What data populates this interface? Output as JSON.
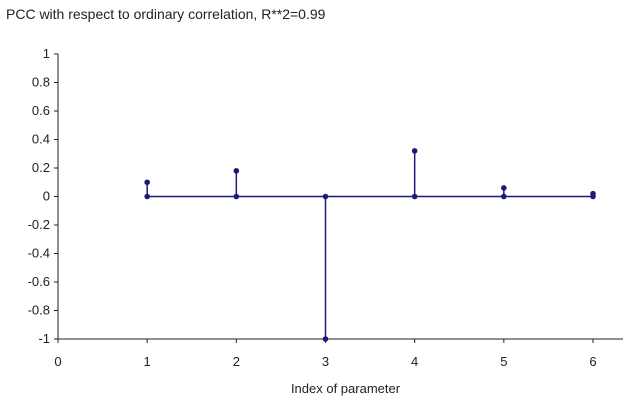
{
  "chart_data": {
    "type": "stem",
    "title": "PCC with respect to ordinary correlation, R**2=0.99",
    "xlabel": "Index of parameter",
    "ylabel": "",
    "x": [
      1,
      2,
      3,
      4,
      5,
      6
    ],
    "values": [
      0.1,
      0.18,
      -1.0,
      0.32,
      0.06,
      0.02
    ],
    "xlim": [
      0,
      6
    ],
    "ylim": [
      -1,
      1
    ],
    "x_ticks": [
      "0",
      "1",
      "2",
      "3",
      "4",
      "5",
      "6"
    ],
    "y_ticks": [
      "1",
      "0.8",
      "0.6",
      "0.4",
      "0.2",
      "0",
      "-0.2",
      "-0.4",
      "-0.6",
      "-0.8",
      "-1"
    ],
    "series_color": "#1a1a7a",
    "grid": false,
    "legend": "none"
  }
}
